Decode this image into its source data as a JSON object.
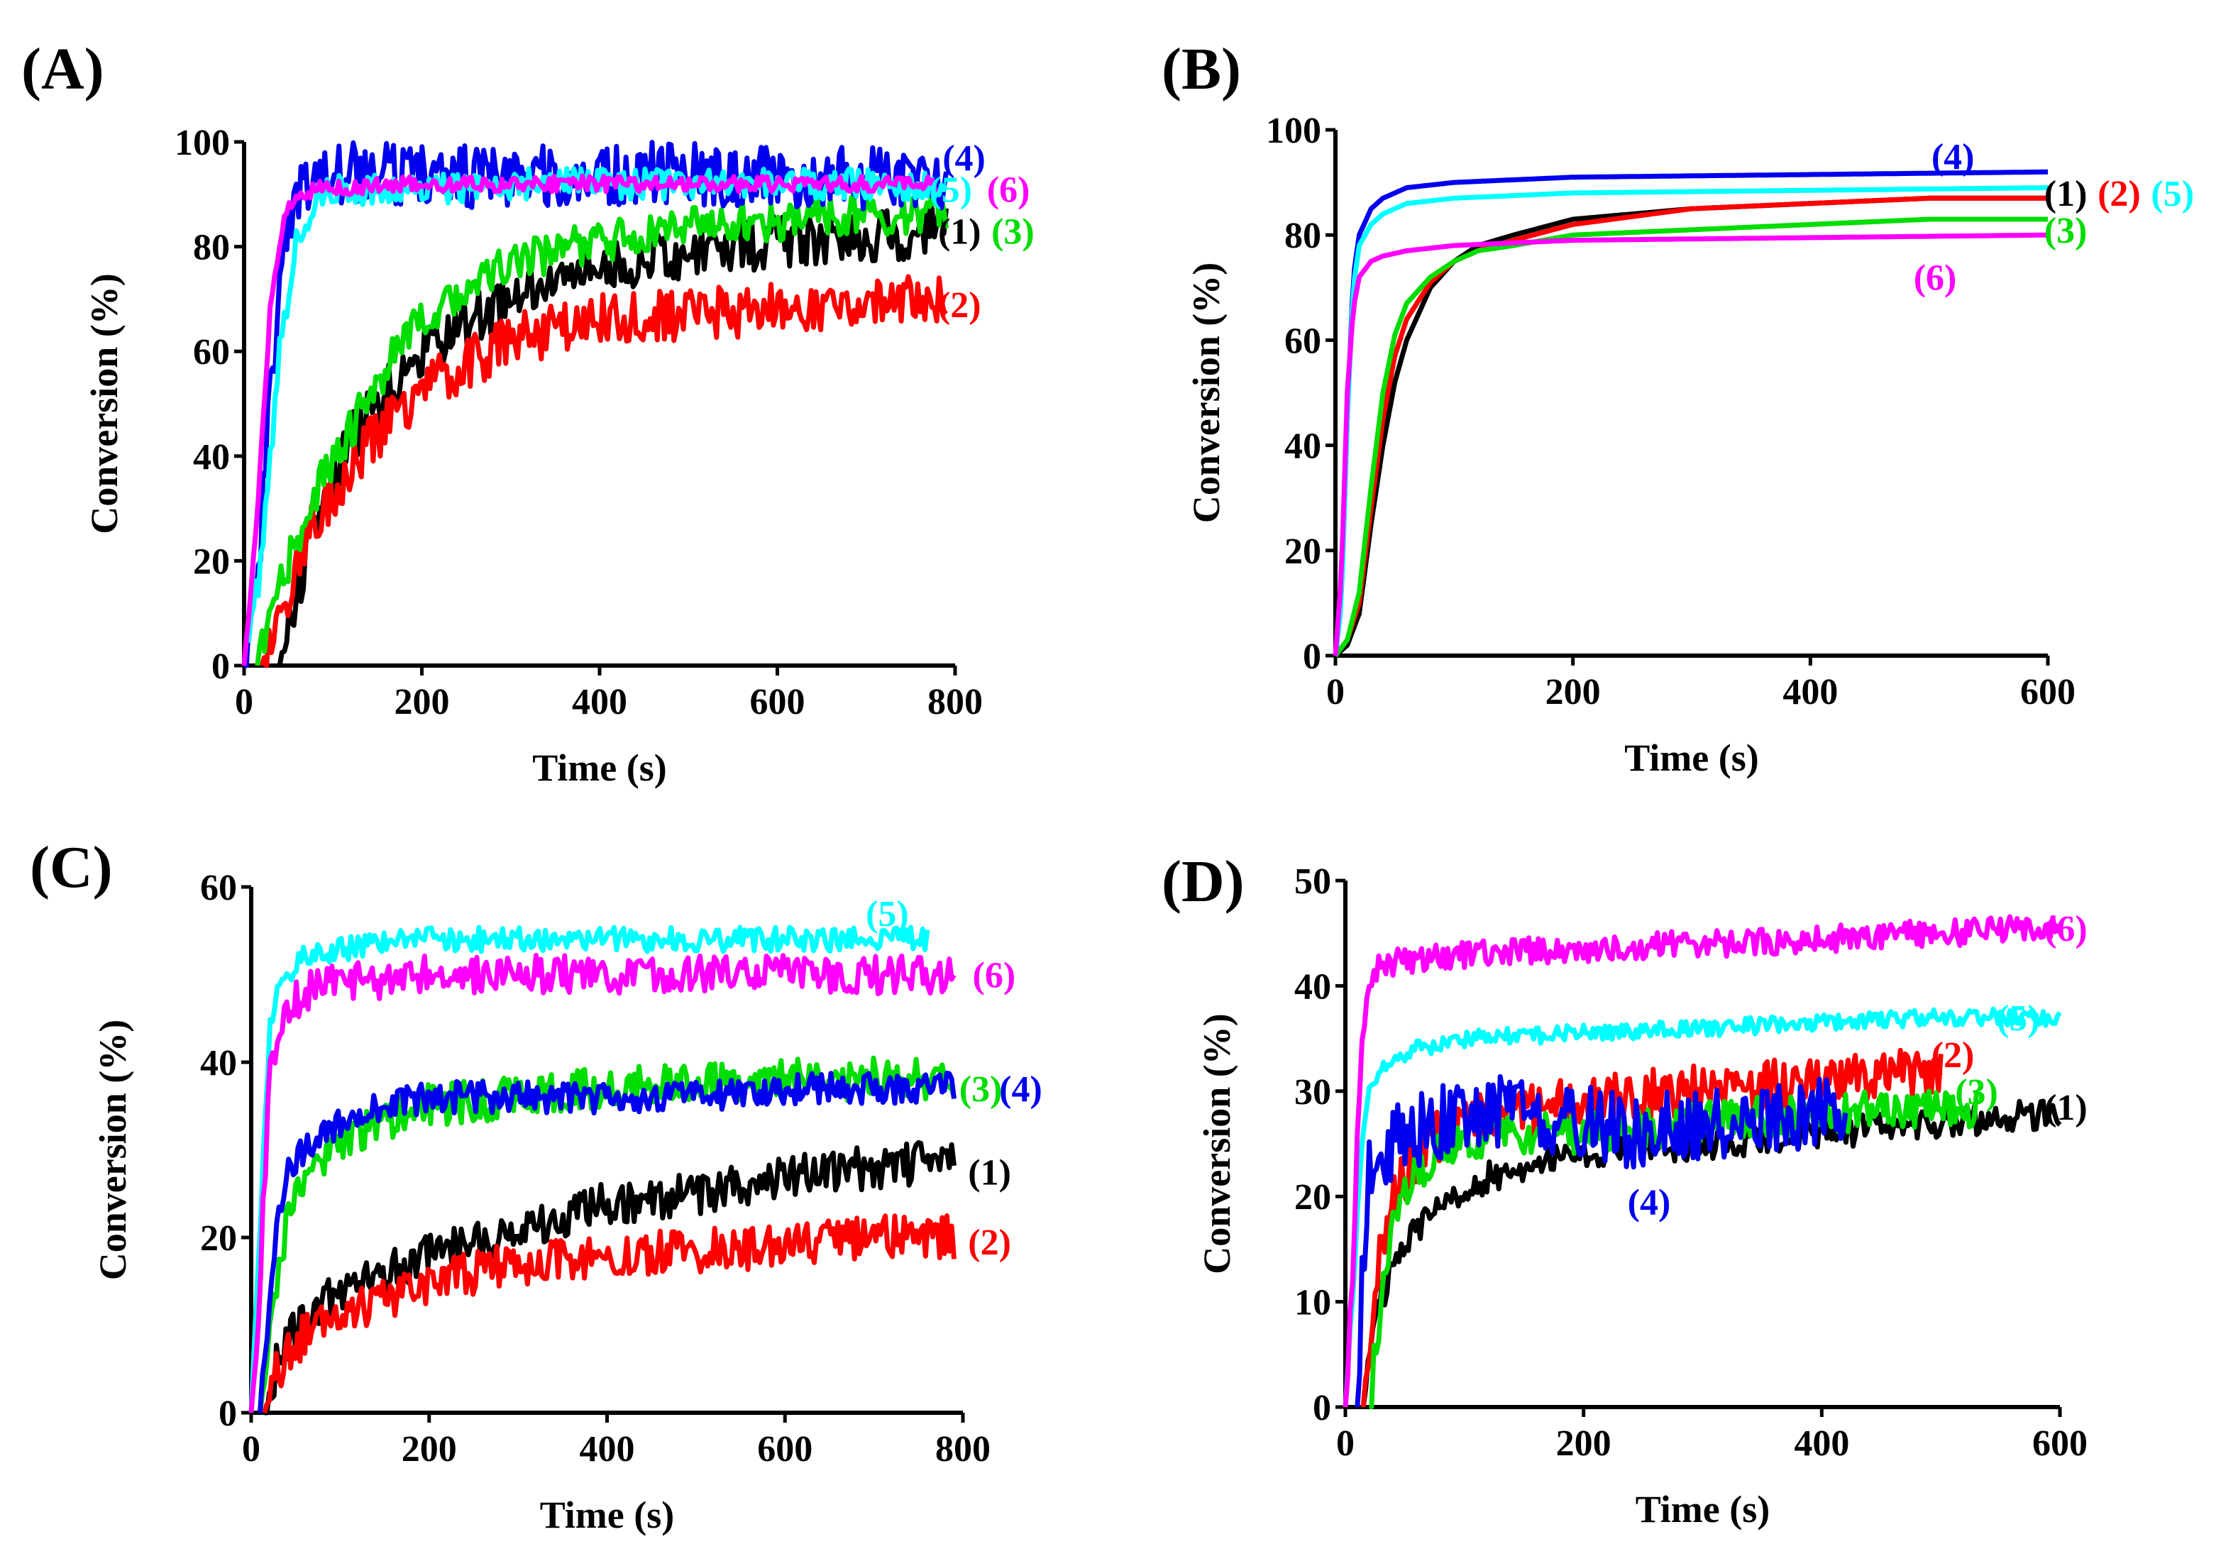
{
  "figure": {
    "panels": [
      "A",
      "B",
      "C",
      "D"
    ]
  },
  "chart_data": [
    {
      "panel": "(A)",
      "type": "line",
      "xlabel": "Time (s)",
      "ylabel": "Conversion (%)",
      "xlim": [
        0,
        800
      ],
      "ylim": [
        0,
        100
      ],
      "xticks": [
        0,
        200,
        400,
        600,
        800
      ],
      "yticks": [
        0,
        20,
        40,
        60,
        80,
        100
      ],
      "series": [
        {
          "name": "(1)",
          "color": "#000000",
          "noise": 5,
          "x": [
            40,
            80,
            120,
            160,
            200,
            300,
            400,
            500,
            600,
            700,
            790
          ],
          "y": [
            0,
            28,
            43,
            52,
            60,
            70,
            76,
            79,
            81,
            82,
            83
          ]
        },
        {
          "name": "(2)",
          "color": "#ff0000",
          "noise": 5,
          "x": [
            20,
            40,
            80,
            120,
            160,
            200,
            300,
            400,
            500,
            600,
            700,
            790
          ],
          "y": [
            0,
            10,
            28,
            38,
            46,
            53,
            62,
            66,
            67,
            68,
            69,
            71
          ]
        },
        {
          "name": "(3)",
          "color": "#00dd00",
          "noise": 4,
          "x": [
            15,
            40,
            80,
            120,
            160,
            200,
            300,
            400,
            500,
            600,
            700,
            790
          ],
          "y": [
            0,
            15,
            33,
            45,
            57,
            66,
            77,
            81,
            84,
            85,
            86,
            87
          ]
        },
        {
          "name": "(4)",
          "color": "#0000ee",
          "noise": 6,
          "x": [
            0,
            15,
            30,
            50,
            70,
            100,
            200,
            300,
            400,
            500,
            600,
            700,
            790
          ],
          "y": [
            0,
            15,
            55,
            85,
            93,
            94,
            94,
            93,
            94,
            94,
            93,
            93,
            92
          ]
        },
        {
          "name": "(5)",
          "color": "#00ffff",
          "noise": 3,
          "x": [
            0,
            20,
            40,
            60,
            80,
            100,
            200,
            300,
            400,
            500,
            600,
            700,
            790
          ],
          "y": [
            0,
            20,
            60,
            82,
            89,
            91,
            91,
            92,
            92,
            92,
            92,
            92,
            91
          ]
        },
        {
          "name": "(6)",
          "color": "#ff00ff",
          "noise": 1.5,
          "x": [
            0,
            15,
            30,
            45,
            60,
            80,
            200,
            400,
            600,
            780
          ],
          "y": [
            0,
            30,
            70,
            86,
            90,
            91,
            92,
            92,
            92,
            92
          ]
        }
      ],
      "annotations": [
        {
          "text": "(4)",
          "color": "#0000ee",
          "x": 810,
          "y": 97
        },
        {
          "text": "(5)",
          "color": "#00ffff",
          "x": 795,
          "y": 91
        },
        {
          "text": "(6)",
          "color": "#ff00ff",
          "x": 860,
          "y": 91
        },
        {
          "text": "(1)",
          "color": "#000000",
          "x": 805,
          "y": 83
        },
        {
          "text": "(3)",
          "color": "#00dd00",
          "x": 865,
          "y": 83
        },
        {
          "text": "(2)",
          "color": "#ff0000",
          "x": 805,
          "y": 69
        }
      ]
    },
    {
      "panel": "(B)",
      "type": "line",
      "xlabel": "Time (s)",
      "ylabel": "Conversion (%)",
      "xlim": [
        0,
        600
      ],
      "ylim": [
        0,
        100
      ],
      "xticks": [
        0,
        200,
        400,
        600
      ],
      "yticks": [
        0,
        20,
        40,
        60,
        80,
        100
      ],
      "series": [
        {
          "name": "(1)",
          "color": "#000000",
          "noise": 0,
          "x": [
            0,
            10,
            20,
            30,
            40,
            50,
            60,
            80,
            100,
            120,
            150,
            200,
            300,
            400,
            500,
            600
          ],
          "y": [
            0,
            2,
            8,
            25,
            40,
            52,
            60,
            70,
            75,
            78,
            80,
            83,
            85,
            86,
            87,
            87
          ]
        },
        {
          "name": "(2)",
          "color": "#ff0000",
          "noise": 0,
          "x": [
            0,
            10,
            20,
            30,
            40,
            50,
            60,
            80,
            100,
            120,
            150,
            200,
            300,
            400,
            500,
            600
          ],
          "y": [
            0,
            3,
            10,
            28,
            45,
            57,
            64,
            71,
            75,
            77,
            79,
            82,
            85,
            86,
            87,
            87
          ]
        },
        {
          "name": "(3)",
          "color": "#00dd00",
          "noise": 0,
          "x": [
            0,
            10,
            20,
            30,
            40,
            50,
            60,
            80,
            100,
            120,
            150,
            200,
            300,
            400,
            500,
            600
          ],
          "y": [
            0,
            3,
            12,
            32,
            50,
            61,
            67,
            72,
            75,
            77,
            78,
            80,
            81,
            82,
            83,
            83
          ]
        },
        {
          "name": "(4)",
          "color": "#0000ee",
          "noise": 0,
          "x": [
            0,
            5,
            10,
            15,
            20,
            30,
            40,
            60,
            100,
            200,
            400,
            600
          ],
          "y": [
            0,
            10,
            45,
            72,
            80,
            85,
            87,
            89,
            90,
            91,
            91.5,
            92
          ]
        },
        {
          "name": "(5)",
          "color": "#00ffff",
          "noise": 0,
          "x": [
            0,
            5,
            10,
            15,
            20,
            30,
            40,
            60,
            100,
            200,
            400,
            600
          ],
          "y": [
            0,
            10,
            45,
            70,
            78,
            82,
            84,
            86,
            87,
            88,
            88.5,
            89
          ]
        },
        {
          "name": "(6)",
          "color": "#ff00ff",
          "noise": 0,
          "x": [
            0,
            5,
            10,
            15,
            20,
            30,
            40,
            60,
            100,
            200,
            400,
            600
          ],
          "y": [
            0,
            15,
            50,
            66,
            72,
            75,
            76,
            77,
            78,
            79,
            79.5,
            80
          ]
        }
      ],
      "annotations": [
        {
          "text": "(4)",
          "color": "#0000ee",
          "x": 520,
          "y": 95
        },
        {
          "text": "(1)",
          "color": "#000000",
          "x": 615,
          "y": 88
        },
        {
          "text": "(2)",
          "color": "#ff0000",
          "x": 660,
          "y": 88
        },
        {
          "text": "(5)",
          "color": "#00ffff",
          "x": 705,
          "y": 88
        },
        {
          "text": "(3)",
          "color": "#00dd00",
          "x": 615,
          "y": 81
        },
        {
          "text": "(6)",
          "color": "#ff00ff",
          "x": 505,
          "y": 72
        }
      ]
    },
    {
      "panel": "(C)",
      "type": "line",
      "xlabel": "Time (s)",
      "ylabel": "Conversion (%)",
      "xlim": [
        0,
        800
      ],
      "ylim": [
        0,
        60
      ],
      "xticks": [
        0,
        200,
        400,
        600,
        800
      ],
      "yticks": [
        0,
        20,
        40,
        60
      ],
      "series": [
        {
          "name": "(1)",
          "color": "#000000",
          "noise": 2.5,
          "x": [
            15,
            30,
            60,
            100,
            150,
            200,
            300,
            400,
            500,
            600,
            700,
            790
          ],
          "y": [
            0,
            6,
            11,
            14,
            16,
            18,
            21,
            24,
            25,
            27,
            28,
            29
          ]
        },
        {
          "name": "(2)",
          "color": "#ff0000",
          "noise": 2.5,
          "x": [
            15,
            30,
            60,
            100,
            150,
            200,
            300,
            400,
            500,
            600,
            700,
            790
          ],
          "y": [
            0,
            5,
            9,
            11,
            13,
            15,
            17,
            18,
            18.5,
            19,
            20,
            20
          ]
        },
        {
          "name": "(3)",
          "color": "#00dd00",
          "noise": 2.5,
          "x": [
            10,
            20,
            30,
            40,
            60,
            100,
            150,
            200,
            300,
            400,
            500,
            600,
            700,
            790
          ],
          "y": [
            0,
            8,
            16,
            22,
            27,
            31,
            33,
            35,
            36,
            37,
            37.5,
            38,
            38,
            38
          ]
        },
        {
          "name": "(4)",
          "color": "#0000ee",
          "noise": 1.8,
          "x": [
            10,
            20,
            30,
            40,
            60,
            100,
            150,
            200,
            300,
            400,
            500,
            600,
            700,
            790
          ],
          "y": [
            0,
            12,
            22,
            27,
            30,
            33,
            35,
            36,
            36,
            36,
            36,
            37,
            37,
            37
          ]
        },
        {
          "name": "(5)",
          "color": "#00ffff",
          "noise": 1.4,
          "x": [
            0,
            10,
            20,
            30,
            40,
            60,
            100,
            200,
            400,
            600,
            700,
            760
          ],
          "y": [
            0,
            20,
            43,
            48,
            50,
            52,
            53,
            54,
            54,
            54,
            54,
            54
          ]
        },
        {
          "name": "(6)",
          "color": "#ff00ff",
          "noise": 2.2,
          "x": [
            0,
            10,
            20,
            30,
            40,
            60,
            100,
            200,
            400,
            600,
            790
          ],
          "y": [
            0,
            15,
            38,
            44,
            46,
            48,
            49,
            50,
            50,
            50,
            50
          ]
        }
      ],
      "annotations": [
        {
          "text": "(5)",
          "color": "#00ffff",
          "x": 715,
          "y": 57
        },
        {
          "text": "(6)",
          "color": "#ff00ff",
          "x": 835,
          "y": 50
        },
        {
          "text": "(3)",
          "color": "#00dd00",
          "x": 820,
          "y": 37
        },
        {
          "text": "(4)",
          "color": "#0000ee",
          "x": 865,
          "y": 37
        },
        {
          "text": "(1)",
          "color": "#000000",
          "x": 830,
          "y": 27.5
        },
        {
          "text": "(2)",
          "color": "#ff0000",
          "x": 830,
          "y": 19.5
        }
      ]
    },
    {
      "panel": "(D)",
      "type": "line",
      "xlabel": "Time (s)",
      "ylabel": "Conversion (%)",
      "xlim": [
        0,
        600
      ],
      "ylim": [
        0,
        50
      ],
      "xticks": [
        0,
        200,
        400,
        600
      ],
      "yticks": [
        0,
        10,
        20,
        30,
        40,
        50
      ],
      "series": [
        {
          "name": "(1)",
          "color": "#000000",
          "noise": 1.5,
          "x": [
            15,
            25,
            40,
            60,
            80,
            100,
            150,
            200,
            300,
            400,
            500,
            600
          ],
          "y": [
            0,
            8,
            14,
            17,
            19,
            21,
            23,
            24,
            25,
            26,
            27,
            28
          ]
        },
        {
          "name": "(2)",
          "color": "#ff0000",
          "noise": 2.5,
          "x": [
            15,
            25,
            40,
            60,
            80,
            100,
            150,
            200,
            300,
            400,
            500
          ],
          "y": [
            0,
            12,
            20,
            24,
            26,
            27,
            28,
            29,
            30,
            31,
            32
          ]
        },
        {
          "name": "(3)",
          "color": "#00dd00",
          "noise": 2.0,
          "x": [
            20,
            30,
            40,
            60,
            80,
            100,
            150,
            200,
            300,
            400,
            500,
            530
          ],
          "y": [
            0,
            10,
            18,
            22,
            24,
            25,
            26,
            26,
            27,
            28,
            28.5,
            28.5
          ]
        },
        {
          "name": "(4)",
          "color": "#0000ee",
          "noise": 3.5,
          "x": [
            10,
            15,
            20,
            30,
            50,
            80,
            100,
            150,
            200,
            250,
            300,
            350,
            400,
            420
          ],
          "y": [
            0,
            15,
            22,
            24,
            26,
            27,
            28,
            28,
            27,
            26,
            27,
            27,
            28,
            28
          ]
        },
        {
          "name": "(5)",
          "color": "#00ffff",
          "noise": 0.8,
          "x": [
            0,
            10,
            15,
            20,
            30,
            40,
            60,
            100,
            200,
            300,
            400,
            500,
            600
          ],
          "y": [
            0,
            18,
            27,
            30,
            32,
            33,
            34,
            35,
            35.5,
            36,
            36.5,
            37,
            37
          ]
        },
        {
          "name": "(6)",
          "color": "#ff00ff",
          "noise": 1.3,
          "x": [
            0,
            5,
            10,
            15,
            20,
            30,
            50,
            100,
            200,
            300,
            400,
            500,
            600
          ],
          "y": [
            0,
            10,
            25,
            36,
            40,
            42,
            42.5,
            43,
            43.5,
            44,
            44.5,
            45,
            45.5
          ]
        }
      ],
      "annotations": [
        {
          "text": "(6)",
          "color": "#ff00ff",
          "x": 605,
          "y": 45.5
        },
        {
          "text": "(5)",
          "color": "#00ffff",
          "x": 565,
          "y": 37
        },
        {
          "text": "(2)",
          "color": "#ff0000",
          "x": 510,
          "y": 33.5
        },
        {
          "text": "(3)",
          "color": "#00dd00",
          "x": 530,
          "y": 30
        },
        {
          "text": "(1)",
          "color": "#000000",
          "x": 605,
          "y": 28.5
        },
        {
          "text": "(4)",
          "color": "#0000ee",
          "x": 255,
          "y": 19.5
        }
      ]
    }
  ]
}
